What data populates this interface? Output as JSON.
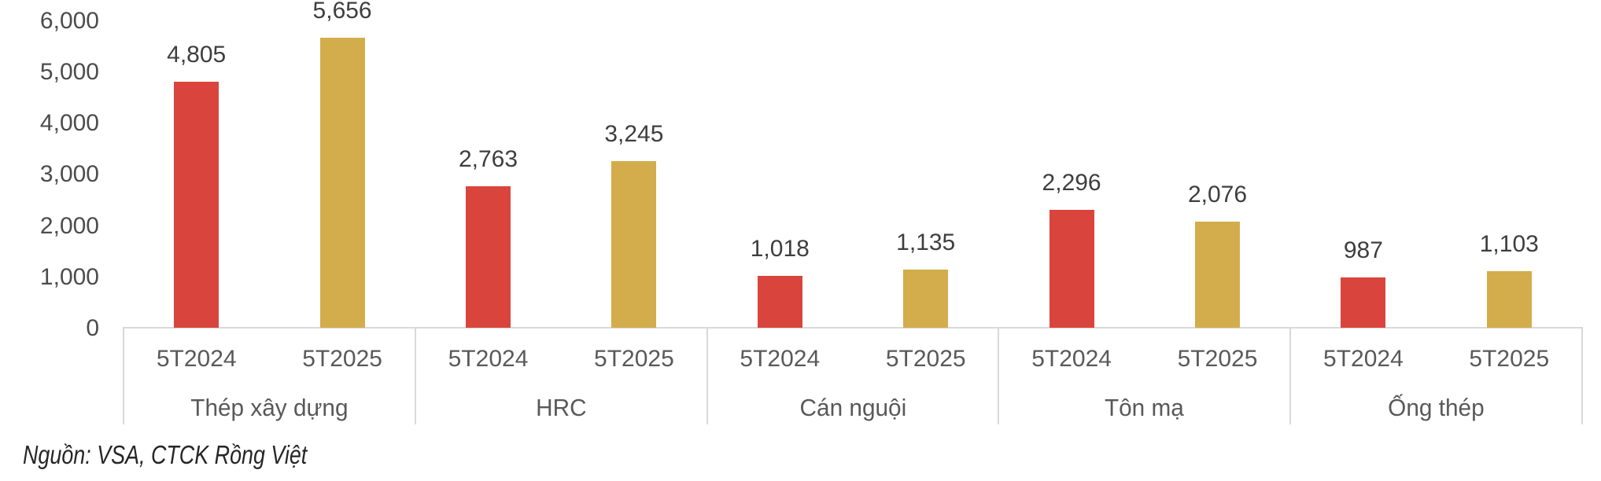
{
  "chart_data": {
    "type": "bar",
    "title": "",
    "categories": [
      "Thép xây dựng",
      "HRC",
      "Cán nguội",
      "Tôn mạ",
      "Ống thép"
    ],
    "series": [
      {
        "name": "5T2024",
        "color": "#D9453C",
        "values": [
          4805,
          2763,
          1018,
          2296,
          987
        ],
        "labels": [
          "4,805",
          "2,763",
          "1,018",
          "2,296",
          "987"
        ]
      },
      {
        "name": "5T2025",
        "color": "#D3AD4B",
        "values": [
          5656,
          3245,
          1135,
          2076,
          1103
        ],
        "labels": [
          "5,656",
          "3,245",
          "1,135",
          "2,076",
          "1,103"
        ]
      }
    ],
    "yticks": [
      {
        "value": 0,
        "label": "0"
      },
      {
        "value": 1000,
        "label": "1,000"
      },
      {
        "value": 2000,
        "label": "2,000"
      },
      {
        "value": 3000,
        "label": "3,000"
      },
      {
        "value": 4000,
        "label": "4,000"
      },
      {
        "value": 5000,
        "label": "5,000"
      },
      {
        "value": 6000,
        "label": "6,000"
      }
    ],
    "ylim": [
      0,
      6000
    ],
    "grid": false,
    "legend_position": "none",
    "source_note": "Nguồn: VSA, CTCK Rồng Việt"
  },
  "colors": {
    "series_2024": "#D9453C",
    "series_2025": "#D3AD4B",
    "axis_line": "#D9D9D9",
    "ytick_text": "#4C4C4E",
    "data_label_text": "#3E3E40",
    "xtick_text": "#59595B",
    "source_text": "#262626",
    "background": "#FFFFFF"
  }
}
